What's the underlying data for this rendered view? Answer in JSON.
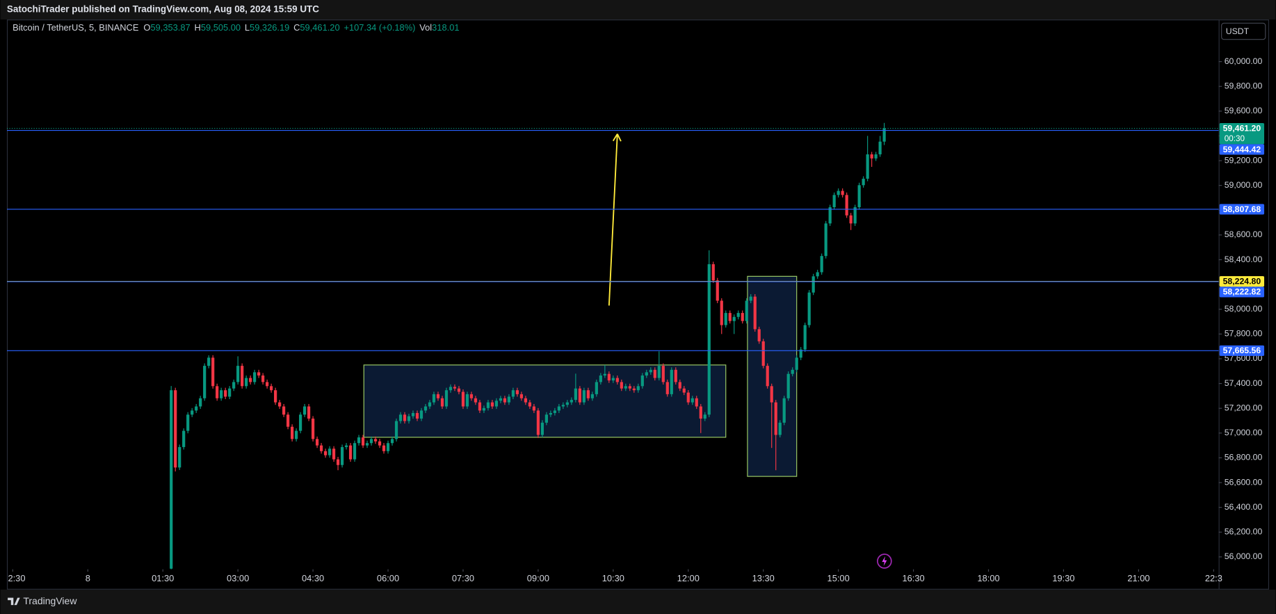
{
  "header": {
    "published": "SatochiTrader published on TradingView.com, Aug 08, 2024 15:59 UTC",
    "symbol": "Bitcoin / TetherUS, 5, BINANCE",
    "ohlc": [
      {
        "key": "O",
        "value": "59,353.87"
      },
      {
        "key": "H",
        "value": "59,505.00"
      },
      {
        "key": "L",
        "value": "59,326.19"
      },
      {
        "key": "C",
        "value": "59,461.20"
      }
    ],
    "change": "+107.34 (+0.18%)",
    "volume_key": "Vol",
    "volume": "318.01",
    "value_color": "#089981"
  },
  "currency": "USDT",
  "footer": {
    "brand": "TradingView"
  },
  "chart_data": {
    "type": "candlestick",
    "up_color": "#089981",
    "down_color": "#f23645",
    "grid": false,
    "xlim": [
      -97,
      1356
    ],
    "ylim": [
      55900,
      60340
    ],
    "xticks": [
      {
        "value": -90,
        "label": "2:30"
      },
      {
        "value": 0,
        "label": "8"
      },
      {
        "value": 90,
        "label": "01:30"
      },
      {
        "value": 180,
        "label": "03:00"
      },
      {
        "value": 270,
        "label": "04:30"
      },
      {
        "value": 360,
        "label": "06:00"
      },
      {
        "value": 450,
        "label": "07:30"
      },
      {
        "value": 540,
        "label": "09:00"
      },
      {
        "value": 630,
        "label": "10:30"
      },
      {
        "value": 720,
        "label": "12:00"
      },
      {
        "value": 810,
        "label": "13:30"
      },
      {
        "value": 900,
        "label": "15:00"
      },
      {
        "value": 990,
        "label": "16:30"
      },
      {
        "value": 1080,
        "label": "18:00"
      },
      {
        "value": 1170,
        "label": "19:30"
      },
      {
        "value": 1260,
        "label": "21:00"
      },
      {
        "value": 1350,
        "label": "22:3"
      }
    ],
    "yticks": [
      {
        "value": 56000,
        "label": "56,000.00"
      },
      {
        "value": 56200,
        "label": "56,200.00"
      },
      {
        "value": 56400,
        "label": "56,400.00"
      },
      {
        "value": 56600,
        "label": "56,600.00"
      },
      {
        "value": 56800,
        "label": "56,800.00"
      },
      {
        "value": 57000,
        "label": "57,000.00"
      },
      {
        "value": 57200,
        "label": "57,200.00"
      },
      {
        "value": 57400,
        "label": "57,400.00"
      },
      {
        "value": 57600,
        "label": "57,600.00"
      },
      {
        "value": 57800,
        "label": "57,800.00"
      },
      {
        "value": 58000,
        "label": "58,000.00"
      },
      {
        "value": 58200,
        "label": "58,200.00"
      },
      {
        "value": 58400,
        "label": "58,400.00"
      },
      {
        "value": 58600,
        "label": "58,600.00"
      },
      {
        "value": 58800,
        "label": "58,800.00"
      },
      {
        "value": 59000,
        "label": "59,000.00"
      },
      {
        "value": 59200,
        "label": "59,200.00"
      },
      {
        "value": 59400,
        "label": "59,400.00"
      },
      {
        "value": 59600,
        "label": "59,600.00"
      },
      {
        "value": 59800,
        "label": "59,800.00"
      },
      {
        "value": 60000,
        "label": "60,000.00"
      }
    ],
    "x": [
      100,
      105,
      110,
      115,
      120,
      125,
      130,
      135,
      140,
      145,
      150,
      155,
      160,
      165,
      170,
      175,
      180,
      185,
      190,
      195,
      200,
      205,
      210,
      215,
      220,
      225,
      230,
      235,
      240,
      245,
      250,
      255,
      260,
      265,
      270,
      275,
      280,
      285,
      290,
      295,
      300,
      305,
      310,
      315,
      320,
      325,
      330,
      335,
      340,
      345,
      350,
      355,
      360,
      365,
      370,
      375,
      380,
      385,
      390,
      395,
      400,
      405,
      410,
      415,
      420,
      425,
      430,
      435,
      440,
      445,
      450,
      455,
      460,
      465,
      470,
      475,
      480,
      485,
      490,
      495,
      500,
      505,
      510,
      515,
      520,
      525,
      530,
      535,
      540,
      545,
      550,
      555,
      560,
      565,
      570,
      575,
      580,
      585,
      590,
      595,
      600,
      605,
      610,
      615,
      620,
      625,
      630,
      635,
      640,
      645,
      650,
      655,
      660,
      665,
      670,
      675,
      680,
      685,
      690,
      695,
      700,
      705,
      710,
      715,
      720,
      725,
      730,
      735,
      740,
      745,
      750,
      755,
      760,
      765,
      770,
      775,
      780,
      785,
      790,
      795,
      800,
      805,
      810,
      815,
      820,
      825,
      830,
      835,
      840,
      845,
      850,
      855,
      860,
      865,
      870,
      875,
      880,
      885,
      890,
      895,
      900,
      905,
      910,
      915,
      920,
      925,
      930,
      935,
      940,
      945,
      950,
      955
    ],
    "open": [
      55905,
      57346,
      56722,
      56887,
      57018,
      57149,
      57182,
      57215,
      57281,
      57543,
      57609,
      57379,
      57281,
      57346,
      57294,
      57360,
      57412,
      57543,
      57379,
      57445,
      57412,
      57491,
      57465,
      57412,
      57379,
      57346,
      57248,
      57215,
      57149,
      57051,
      56952,
      57018,
      57149,
      57215,
      57117,
      56952,
      56900,
      56854,
      56821,
      56874,
      56788,
      56742,
      56887,
      56900,
      56788,
      56919,
      56965,
      56900,
      56919,
      56952,
      56933,
      56900,
      56854,
      56919,
      56952,
      57097,
      57149,
      57097,
      57136,
      57162,
      57117,
      57182,
      57215,
      57248,
      57314,
      57281,
      57215,
      57346,
      57373,
      57360,
      57333,
      57215,
      57314,
      57281,
      57248,
      57182,
      57202,
      57248,
      57215,
      57261,
      57281,
      57248,
      57294,
      57346,
      57314,
      57281,
      57248,
      57215,
      57182,
      56985,
      57084,
      57149,
      57162,
      57182,
      57215,
      57228,
      57248,
      57268,
      57360,
      57248,
      57346,
      57281,
      57314,
      57412,
      57465,
      57478,
      57425,
      57445,
      57412,
      57360,
      57379,
      57360,
      57346,
      57379,
      57465,
      57491,
      57511,
      57445,
      57543,
      57412,
      57314,
      57511,
      57412,
      57360,
      57327,
      57248,
      57281,
      57215,
      57117,
      57149,
      58364,
      58233,
      58069,
      57872,
      57970,
      57905,
      57938,
      57970,
      57905,
      58069,
      58102,
      57839,
      57741,
      57543,
      57379,
      57248,
      56985,
      57084,
      57281,
      57478,
      57511,
      57609,
      57675,
      57872,
      58135,
      58266,
      58299,
      58430,
      58693,
      58824,
      58923,
      58956,
      58923,
      58758,
      58693,
      58824,
      59002,
      59054,
      59251,
      59218,
      59251,
      59353.87
    ],
    "high": [
      57380,
      57366,
      56907,
      57038,
      57169,
      57202,
      57235,
      57301,
      57563,
      57628,
      57629,
      57399,
      57366,
      57366,
      57380,
      57432,
      57620,
      57563,
      57465,
      57465,
      57511,
      57511,
      57485,
      57432,
      57399,
      57366,
      57268,
      57235,
      57169,
      57071,
      57038,
      57169,
      57235,
      57235,
      57137,
      56972,
      56920,
      56874,
      56894,
      56894,
      56808,
      56907,
      56920,
      56920,
      56939,
      56985,
      56985,
      56939,
      56972,
      56972,
      56953,
      56920,
      56939,
      56972,
      57117,
      57169,
      57169,
      57156,
      57182,
      57182,
      57202,
      57235,
      57268,
      57334,
      57334,
      57301,
      57366,
      57393,
      57393,
      57380,
      57353,
      57334,
      57334,
      57301,
      57268,
      57222,
      57268,
      57268,
      57281,
      57301,
      57301,
      57314,
      57366,
      57366,
      57334,
      57301,
      57268,
      57235,
      57202,
      57104,
      57169,
      57182,
      57202,
      57235,
      57248,
      57268,
      57288,
      57480,
      57380,
      57366,
      57366,
      57334,
      57432,
      57485,
      57550,
      57498,
      57465,
      57465,
      57432,
      57399,
      57399,
      57380,
      57399,
      57485,
      57511,
      57531,
      57531,
      57660,
      57563,
      57432,
      57531,
      57531,
      57432,
      57380,
      57347,
      57301,
      57301,
      57235,
      57169,
      58476,
      58384,
      58253,
      58089,
      57990,
      57990,
      57958,
      57990,
      57990,
      58089,
      58122,
      58122,
      57859,
      57761,
      57563,
      57399,
      57268,
      57104,
      57301,
      57498,
      57531,
      57629,
      57695,
      57892,
      58155,
      58286,
      58319,
      58450,
      58713,
      58844,
      58943,
      58976,
      58976,
      58943,
      58778,
      58844,
      59022,
      59074,
      59400,
      59271,
      59271,
      59400,
      59505
    ],
    "low": [
      55895,
      56690,
      56702,
      56867,
      56998,
      57129,
      57162,
      57195,
      57261,
      57523,
      57359,
      57261,
      57261,
      57274,
      57274,
      57340,
      57392,
      57359,
      57359,
      57392,
      57392,
      57445,
      57392,
      57359,
      57326,
      57228,
      57195,
      57129,
      57031,
      56932,
      56932,
      56998,
      57129,
      57097,
      56932,
      56880,
      56834,
      56801,
      56801,
      56768,
      56700,
      56722,
      56867,
      56768,
      56768,
      56899,
      56880,
      56880,
      56899,
      56913,
      56880,
      56834,
      56834,
      56899,
      56932,
      57077,
      57077,
      57077,
      57116,
      57097,
      57097,
      57162,
      57195,
      57228,
      57261,
      57195,
      57195,
      57326,
      57340,
      57313,
      57195,
      57195,
      57261,
      57228,
      57162,
      57162,
      57182,
      57195,
      57195,
      57241,
      57228,
      57228,
      57274,
      57294,
      57261,
      57228,
      57195,
      57162,
      56960,
      56965,
      57064,
      57129,
      57142,
      57162,
      57195,
      57208,
      57228,
      57248,
      57228,
      57228,
      57261,
      57261,
      57294,
      57392,
      57445,
      57405,
      57405,
      57392,
      57340,
      57340,
      57340,
      57326,
      57326,
      57359,
      57445,
      57471,
      57425,
      57425,
      57392,
      57294,
      57294,
      57392,
      57340,
      57307,
      57228,
      57228,
      57195,
      57000,
      57097,
      57129,
      58213,
      58049,
      57800,
      57852,
      57885,
      57800,
      57918,
      57885,
      57885,
      58049,
      57819,
      57721,
      57523,
      57359,
      56880,
      56700,
      56965,
      57064,
      57261,
      57458,
      57491,
      57589,
      57655,
      57852,
      58115,
      58246,
      58279,
      58410,
      58673,
      58804,
      58903,
      58903,
      58738,
      58640,
      58673,
      58804,
      58982,
      59034,
      59150,
      59198,
      59231,
      59326.19
    ],
    "close": [
      57346,
      56722,
      56887,
      57018,
      57149,
      57182,
      57215,
      57281,
      57543,
      57609,
      57379,
      57281,
      57346,
      57294,
      57360,
      57412,
      57543,
      57379,
      57445,
      57412,
      57491,
      57465,
      57412,
      57379,
      57346,
      57248,
      57215,
      57149,
      57051,
      56952,
      57018,
      57149,
      57215,
      57117,
      56952,
      56900,
      56854,
      56821,
      56874,
      56788,
      56742,
      56887,
      56900,
      56788,
      56919,
      56965,
      56900,
      56919,
      56952,
      56933,
      56900,
      56854,
      56919,
      56952,
      57097,
      57149,
      57097,
      57136,
      57162,
      57117,
      57182,
      57215,
      57248,
      57314,
      57281,
      57215,
      57346,
      57373,
      57360,
      57333,
      57215,
      57314,
      57281,
      57248,
      57182,
      57202,
      57248,
      57215,
      57261,
      57281,
      57248,
      57294,
      57346,
      57314,
      57281,
      57248,
      57215,
      57182,
      56985,
      57084,
      57149,
      57162,
      57182,
      57215,
      57228,
      57248,
      57268,
      57360,
      57248,
      57346,
      57281,
      57314,
      57412,
      57465,
      57478,
      57425,
      57445,
      57412,
      57360,
      57379,
      57360,
      57346,
      57379,
      57465,
      57491,
      57511,
      57445,
      57543,
      57412,
      57314,
      57511,
      57412,
      57360,
      57327,
      57248,
      57281,
      57215,
      57117,
      57149,
      58364,
      58233,
      58069,
      57872,
      57970,
      57905,
      57938,
      57970,
      57905,
      58069,
      58102,
      57839,
      57741,
      57543,
      57379,
      57248,
      56985,
      57084,
      57281,
      57478,
      57511,
      57609,
      57675,
      57872,
      58135,
      58266,
      58299,
      58430,
      58693,
      58824,
      58923,
      58956,
      58923,
      58758,
      58693,
      58824,
      59002,
      59054,
      59251,
      59218,
      59251,
      59354,
      59461.2
    ],
    "price_lines": [
      {
        "value": 58224.8,
        "label": "58,224.80",
        "color": "#ffeb3b",
        "text_color": "#000000"
      },
      {
        "value": 59444.42,
        "label": "59,444.42",
        "color": "#2962ff",
        "text_color": "#ffffff"
      },
      {
        "value": 58807.68,
        "label": "58,807.68",
        "color": "#2962ff",
        "text_color": "#ffffff"
      },
      {
        "value": 58222.82,
        "label": "58,222.82",
        "color": "#2962ff",
        "text_color": "#ffffff"
      },
      {
        "value": 57665.56,
        "label": "57,665.56",
        "color": "#2962ff",
        "text_color": "#ffffff"
      }
    ],
    "last_price": {
      "value": 59461.2,
      "label": "59,461.20",
      "countdown": "00:30",
      "color": "#089981"
    },
    "annotations": [
      {
        "kind": "rectangle",
        "x0": 331,
        "x1": 765,
        "y0": 56966,
        "y1": 57550,
        "color": "#9ccc65",
        "fill": "#0b1a33"
      },
      {
        "kind": "rectangle",
        "x0": 791,
        "x1": 850,
        "y0": 56650,
        "y1": 58266,
        "color": "#9ccc65",
        "fill": "#0b1a33"
      },
      {
        "kind": "arrow",
        "x": [
          625,
          635
        ],
        "y": [
          58030,
          59416
        ],
        "color": "#ffeb3b"
      }
    ]
  }
}
